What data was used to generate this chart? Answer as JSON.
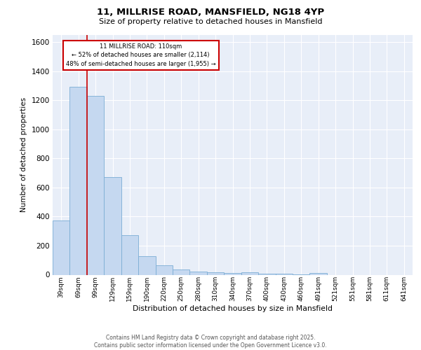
{
  "title_line1": "11, MILLRISE ROAD, MANSFIELD, NG18 4YP",
  "title_line2": "Size of property relative to detached houses in Mansfield",
  "xlabel": "Distribution of detached houses by size in Mansfield",
  "ylabel": "Number of detached properties",
  "categories": [
    "39sqm",
    "69sqm",
    "99sqm",
    "129sqm",
    "159sqm",
    "190sqm",
    "220sqm",
    "250sqm",
    "280sqm",
    "310sqm",
    "340sqm",
    "370sqm",
    "400sqm",
    "430sqm",
    "460sqm",
    "491sqm",
    "521sqm",
    "551sqm",
    "581sqm",
    "611sqm",
    "641sqm"
  ],
  "values": [
    375,
    1295,
    1230,
    672,
    272,
    128,
    65,
    37,
    22,
    15,
    10,
    15,
    8,
    5,
    3,
    13,
    0,
    0,
    0,
    0,
    0
  ],
  "bar_color": "#c5d8f0",
  "bar_edge_color": "#7badd4",
  "background_color": "#e8eef8",
  "grid_color": "#ffffff",
  "vline_color": "#cc0000",
  "vline_position": 1.5,
  "annotation_text": "11 MILLRISE ROAD: 110sqm\n← 52% of detached houses are smaller (2,114)\n48% of semi-detached houses are larger (1,955) →",
  "annotation_box_facecolor": "#ffffff",
  "annotation_box_edgecolor": "#cc0000",
  "footer_text": "Contains HM Land Registry data © Crown copyright and database right 2025.\nContains public sector information licensed under the Open Government Licence v3.0.",
  "ylim": [
    0,
    1650
  ],
  "yticks": [
    0,
    200,
    400,
    600,
    800,
    1000,
    1200,
    1400,
    1600
  ],
  "fig_width": 6.0,
  "fig_height": 5.0,
  "dpi": 100
}
